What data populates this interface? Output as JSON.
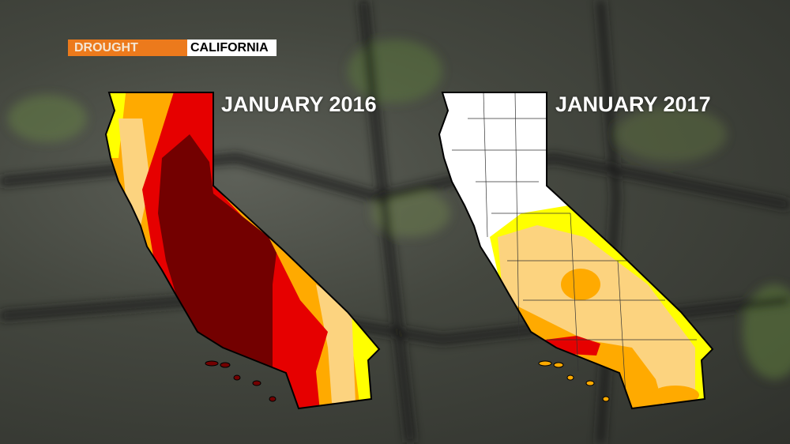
{
  "badge": {
    "category": "DROUGHT",
    "region": "CALIFORNIA"
  },
  "maps": [
    {
      "title": "JANUARY 2016"
    },
    {
      "title": "JANUARY 2017"
    }
  ],
  "colors": {
    "none": "#ffffff",
    "abnormally_dry": "#ffff00",
    "moderate": "#fcd37f",
    "severe": "#ffaa00",
    "extreme": "#e60000",
    "exceptional": "#730000",
    "badge_orange": "#ec7a1c"
  }
}
